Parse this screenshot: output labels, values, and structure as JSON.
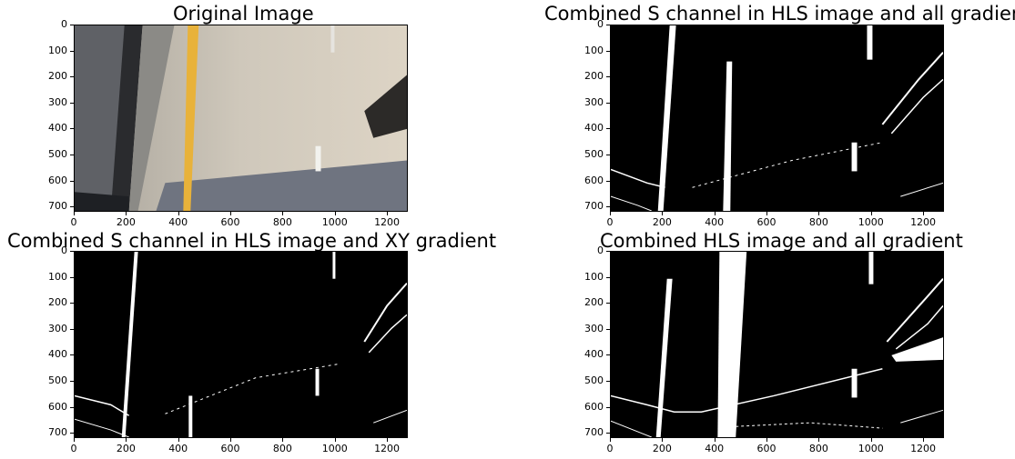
{
  "panels": [
    {
      "title": "Original Image",
      "image": "original-road-photo"
    },
    {
      "title": "Combined S channel in HLS image and all gradient",
      "image": "binary-threshold"
    },
    {
      "title": "Combined S channel in HLS image and XY gradient",
      "image": "binary-threshold"
    },
    {
      "title": "Combined  HLS image and all gradient",
      "image": "binary-threshold"
    }
  ],
  "axes": {
    "yticks": [
      "0",
      "100",
      "200",
      "300",
      "400",
      "500",
      "600",
      "700"
    ],
    "xticks": [
      "0",
      "200",
      "400",
      "600",
      "800",
      "1000",
      "1200"
    ],
    "y_values": [
      0,
      100,
      200,
      300,
      400,
      500,
      600,
      700
    ],
    "x_values": [
      0,
      200,
      400,
      600,
      800,
      1000,
      1200
    ],
    "xlim": [
      0,
      1280
    ],
    "ylim": [
      720,
      0
    ]
  },
  "colors": {
    "lane_yellow": "#e8b23a",
    "road_light": "#c9c3b6",
    "road_dark": "#6b6e76",
    "binary_bg": "#000000",
    "binary_fg": "#ffffff"
  }
}
